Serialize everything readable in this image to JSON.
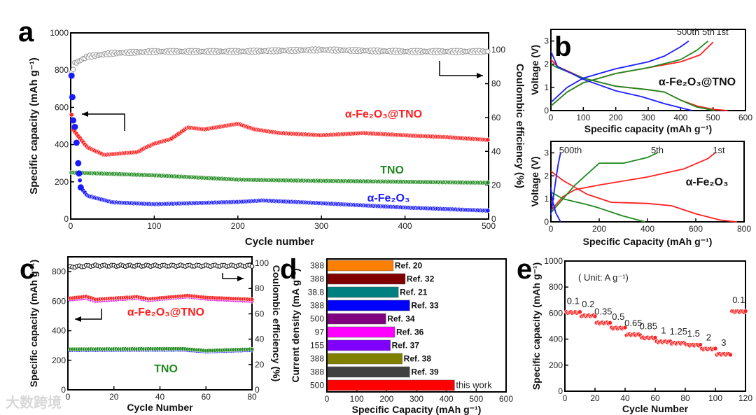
{
  "panel_labels": [
    "a",
    "b",
    "c",
    "d",
    "e"
  ],
  "watermark": "大数跨境",
  "colors": {
    "red": "#ff2020",
    "green": "#1f8a1f",
    "blue": "#1a1aff",
    "grey": "#9a9a9a",
    "black": "#111111",
    "magenta": "#e020e0"
  },
  "chart_data": [
    {
      "type": "scatter",
      "panel": "a",
      "xlabel": "Cycle number",
      "ylabel": "Specific capacity (mAh g⁻¹)",
      "y2label": "Coulombic efficiency (%)",
      "xlim": [
        0,
        500
      ],
      "ylim": [
        0,
        1000
      ],
      "y2lim": [
        0,
        110
      ],
      "xticks": [
        "0",
        "100",
        "200",
        "300",
        "400",
        "500"
      ],
      "yticks": [
        "0",
        "200",
        "400",
        "600",
        "800",
        "1000"
      ],
      "y2ticks": [
        "0",
        "20",
        "40",
        "60",
        "80",
        "100"
      ],
      "series": [
        {
          "name": "Coulombic efficiency",
          "axis": "right",
          "color": "#9a9a9a",
          "points": [
            [
              1,
              86
            ],
            [
              5,
              92
            ],
            [
              20,
              96
            ],
            [
              50,
              98
            ],
            [
              100,
              99
            ],
            [
              200,
              99
            ],
            [
              300,
              100
            ],
            [
              400,
              99
            ],
            [
              500,
              99
            ]
          ]
        },
        {
          "name": "α-Fe₂O₃@TNO",
          "axis": "left",
          "color": "#ff2020",
          "label": "α-Fe₂O₃@TNO",
          "points": [
            [
              1,
              560
            ],
            [
              3,
              480
            ],
            [
              10,
              440
            ],
            [
              20,
              385
            ],
            [
              40,
              345
            ],
            [
              80,
              360
            ],
            [
              90,
              385
            ],
            [
              100,
              405
            ],
            [
              120,
              430
            ],
            [
              140,
              492
            ],
            [
              160,
              482
            ],
            [
              200,
              512
            ],
            [
              220,
              482
            ],
            [
              250,
              462
            ],
            [
              300,
              450
            ],
            [
              350,
              462
            ],
            [
              400,
              450
            ],
            [
              450,
              440
            ],
            [
              500,
              425
            ]
          ]
        },
        {
          "name": "TNO",
          "axis": "left",
          "color": "#1f8a1f",
          "label": "TNO",
          "points": [
            [
              1,
              250
            ],
            [
              100,
              235
            ],
            [
              200,
              212
            ],
            [
              300,
              205
            ],
            [
              400,
              200
            ],
            [
              500,
              195
            ]
          ]
        },
        {
          "name": "α-Fe₂O₃",
          "axis": "left",
          "color": "#1a1aff",
          "label": "α-Fe₂O₃",
          "points": [
            [
              1,
              770
            ],
            [
              2,
              655
            ],
            [
              3,
              530
            ],
            [
              5,
              495
            ],
            [
              7,
              410
            ],
            [
              9,
              300
            ],
            [
              10,
              245
            ],
            [
              12,
              170
            ],
            [
              20,
              125
            ],
            [
              50,
              90
            ],
            [
              100,
              80
            ],
            [
              200,
              92
            ],
            [
              230,
              100
            ],
            [
              300,
              85
            ],
            [
              400,
              62
            ],
            [
              500,
              45
            ]
          ]
        }
      ]
    },
    {
      "type": "line",
      "panel": "b-top",
      "xlabel": "Specific capacity (mAh g⁻¹)",
      "ylabel": "Voltage (V)",
      "title": "α-Fe₂O₃@TNO",
      "xlim": [
        0,
        600
      ],
      "ylim": [
        0,
        3.5
      ],
      "xticks": [
        "0",
        "100",
        "200",
        "300",
        "400",
        "500",
        "600"
      ],
      "yticks": [
        "0",
        "1",
        "2",
        "3"
      ],
      "series": [
        {
          "name": "1st",
          "color": "#ff2020",
          "charge": [
            [
              0,
              0.2
            ],
            [
              50,
              0.8
            ],
            [
              100,
              1.2
            ],
            [
              200,
              1.6
            ],
            [
              300,
              1.85
            ],
            [
              400,
              2.1
            ],
            [
              460,
              2.4
            ],
            [
              500,
              2.95
            ]
          ],
          "discharge": [
            [
              0,
              2.2
            ],
            [
              20,
              1.9
            ],
            [
              100,
              1.4
            ],
            [
              200,
              1.05
            ],
            [
              300,
              0.9
            ],
            [
              350,
              0.8
            ],
            [
              400,
              0.45
            ],
            [
              450,
              0.2
            ],
            [
              500,
              0.05
            ],
            [
              545,
              0
            ]
          ]
        },
        {
          "name": "5th",
          "color": "#1f8a1f",
          "charge": [
            [
              0,
              0.2
            ],
            [
              50,
              0.8
            ],
            [
              100,
              1.2
            ],
            [
              200,
              1.6
            ],
            [
              300,
              1.85
            ],
            [
              400,
              2.2
            ],
            [
              450,
              2.6
            ],
            [
              485,
              3.0
            ]
          ],
          "discharge": [
            [
              0,
              2.0
            ],
            [
              20,
              1.85
            ],
            [
              100,
              1.4
            ],
            [
              200,
              1.05
            ],
            [
              300,
              0.9
            ],
            [
              350,
              0.8
            ],
            [
              400,
              0.45
            ],
            [
              450,
              0.15
            ],
            [
              505,
              0
            ]
          ]
        },
        {
          "name": "500th",
          "color": "#1a1aff",
          "charge": [
            [
              0,
              0.35
            ],
            [
              50,
              1.0
            ],
            [
              100,
              1.4
            ],
            [
              200,
              1.8
            ],
            [
              300,
              2.1
            ],
            [
              350,
              2.35
            ],
            [
              400,
              2.75
            ],
            [
              425,
              3.0
            ]
          ],
          "discharge": [
            [
              0,
              2.55
            ],
            [
              20,
              1.9
            ],
            [
              100,
              1.35
            ],
            [
              200,
              0.85
            ],
            [
              280,
              0.6
            ],
            [
              350,
              0.3
            ],
            [
              435,
              0
            ]
          ]
        }
      ],
      "curve_labels": [
        "500th",
        "5th",
        "1st"
      ]
    },
    {
      "type": "line",
      "panel": "b-bottom",
      "xlabel": "Specific Capacity (mAh g⁻¹)",
      "ylabel": "Voltage (V)",
      "title": "α-Fe₂O₃",
      "xlim": [
        0,
        800
      ],
      "ylim": [
        0,
        3.5
      ],
      "xticks": [
        "0",
        "200",
        "400",
        "600",
        "800"
      ],
      "yticks": [
        "0",
        "1",
        "2",
        "3"
      ],
      "series": [
        {
          "name": "1st",
          "color": "#ff2020",
          "charge": [
            [
              0,
              0.5
            ],
            [
              50,
              1.1
            ],
            [
              100,
              1.4
            ],
            [
              200,
              1.6
            ],
            [
              400,
              1.95
            ],
            [
              550,
              2.3
            ],
            [
              650,
              2.75
            ],
            [
              680,
              3.0
            ]
          ],
          "discharge": [
            [
              0,
              2.2
            ],
            [
              50,
              1.8
            ],
            [
              150,
              1.2
            ],
            [
              250,
              0.85
            ],
            [
              400,
              0.8
            ],
            [
              500,
              0.7
            ],
            [
              600,
              0.35
            ],
            [
              700,
              0.08
            ],
            [
              770,
              0
            ]
          ]
        },
        {
          "name": "5th",
          "color": "#1f8a1f",
          "charge": [
            [
              0,
              0.4
            ],
            [
              50,
              1.0
            ],
            [
              100,
              1.6
            ],
            [
              200,
              2.55
            ],
            [
              300,
              2.55
            ],
            [
              400,
              2.8
            ],
            [
              440,
              3.0
            ]
          ],
          "discharge": [
            [
              0,
              1.3
            ],
            [
              50,
              1.0
            ],
            [
              150,
              0.75
            ],
            [
              200,
              0.6
            ],
            [
              300,
              0.25
            ],
            [
              390,
              0
            ]
          ]
        },
        {
          "name": "500th",
          "color": "#1a1aff",
          "charge": [
            [
              0,
              0.3
            ],
            [
              20,
              1.8
            ],
            [
              30,
              2.5
            ],
            [
              40,
              3.0
            ]
          ],
          "discharge": [
            [
              0,
              1.5
            ],
            [
              5,
              1.0
            ],
            [
              20,
              0.4
            ],
            [
              40,
              0
            ]
          ]
        }
      ],
      "curve_labels": [
        "500th",
        "5th",
        "1st"
      ]
    },
    {
      "type": "scatter",
      "panel": "c",
      "xlabel": "Cycle Number",
      "ylabel": "Specific capacity (mAh g⁻¹)",
      "y2label": "Coulombic efficiency (%)",
      "xlim": [
        0,
        80
      ],
      "ylim": [
        0,
        900
      ],
      "y2lim": [
        0,
        105
      ],
      "xticks": [
        "0",
        "20",
        "40",
        "60",
        "80"
      ],
      "yticks": [
        "0",
        "200",
        "400",
        "600",
        "800"
      ],
      "y2ticks": [
        "0",
        "20",
        "40",
        "60",
        "80",
        "100"
      ],
      "series": [
        {
          "name": "Coulombic efficiency",
          "axis": "right",
          "color": "#111111",
          "points": [
            [
              1,
              97
            ],
            [
              10,
              98
            ],
            [
              40,
              98
            ],
            [
              80,
              98
            ]
          ]
        },
        {
          "name": "α-Fe₂O₃@TNO discharge",
          "axis": "left",
          "color": "#e020e0",
          "points": [
            [
              1,
              610
            ],
            [
              8,
              620
            ],
            [
              12,
              600
            ],
            [
              30,
              620
            ],
            [
              35,
              605
            ],
            [
              52,
              630
            ],
            [
              60,
              615
            ],
            [
              80,
              600
            ]
          ]
        },
        {
          "name": "α-Fe₂O₃@TNO",
          "axis": "left",
          "color": "#ff2020",
          "label": "α-Fe₂O₃@TNO",
          "points": [
            [
              1,
              620
            ],
            [
              8,
              632
            ],
            [
              12,
              612
            ],
            [
              30,
              630
            ],
            [
              35,
              615
            ],
            [
              52,
              638
            ],
            [
              60,
              625
            ],
            [
              80,
              612
            ]
          ]
        },
        {
          "name": "TNO discharge",
          "axis": "left",
          "color": "#1a1aff",
          "points": [
            [
              1,
              268
            ],
            [
              50,
              270
            ],
            [
              60,
              258
            ],
            [
              80,
              268
            ]
          ]
        },
        {
          "name": "TNO",
          "axis": "left",
          "color": "#1f8a1f",
          "label": "TNO",
          "points": [
            [
              1,
              275
            ],
            [
              50,
              278
            ],
            [
              60,
              265
            ],
            [
              80,
              275
            ]
          ]
        }
      ]
    },
    {
      "type": "bar",
      "panel": "d",
      "orientation": "horizontal",
      "xlabel": "Specific Capacity (mAh g⁻¹)",
      "ylabel": "Current density (mA g⁻¹)",
      "xlim": [
        0,
        600
      ],
      "xticks": [
        "0",
        "100",
        "200",
        "300",
        "400",
        "500",
        "600"
      ],
      "categories": [
        "Ref. 20",
        "Ref. 32",
        "Ref. 21",
        "Ref. 33",
        "Ref. 34",
        "Ref. 36",
        "Ref. 37",
        "Ref. 38",
        "Ref. 39",
        "this work"
      ],
      "current_density": [
        "388",
        "388",
        "38.8",
        "388",
        "500",
        "97",
        "155",
        "388",
        "388",
        "500"
      ],
      "values": [
        220,
        260,
        237,
        275,
        195,
        225,
        210,
        250,
        275,
        425
      ],
      "bar_colors": [
        "#ff8000",
        "#800000",
        "#008080",
        "#0000ff",
        "#800080",
        "#ff00ff",
        "#8000ff",
        "#808000",
        "#404040",
        "#ff0000"
      ]
    },
    {
      "type": "scatter",
      "panel": "e",
      "xlabel": "Cycle Number",
      "ylabel": "Specific capacity (mAh g⁻¹)",
      "note": "( Unit: A g⁻¹)",
      "xlim": [
        0,
        120
      ],
      "ylim": [
        0,
        1000
      ],
      "xticks": [
        "0",
        "20",
        "40",
        "60",
        "80",
        "100",
        "120"
      ],
      "yticks": [
        "0",
        "200",
        "400",
        "600",
        "800",
        "1000"
      ],
      "steps": [
        {
          "rate": "0.1",
          "from": 1,
          "to": 10,
          "value": 605
        },
        {
          "rate": "0.2",
          "from": 11,
          "to": 20,
          "value": 580
        },
        {
          "rate": "0.35",
          "from": 21,
          "to": 30,
          "value": 525
        },
        {
          "rate": "0.5",
          "from": 31,
          "to": 40,
          "value": 485
        },
        {
          "rate": "0.65",
          "from": 41,
          "to": 50,
          "value": 435
        },
        {
          "rate": "0.85",
          "from": 51,
          "to": 60,
          "value": 410
        },
        {
          "rate": "1",
          "from": 61,
          "to": 70,
          "value": 380
        },
        {
          "rate": "1.25",
          "from": 71,
          "to": 80,
          "value": 370
        },
        {
          "rate": "1.5",
          "from": 81,
          "to": 90,
          "value": 355
        },
        {
          "rate": "2",
          "from": 91,
          "to": 100,
          "value": 325
        },
        {
          "rate": "3",
          "from": 101,
          "to": 110,
          "value": 285
        },
        {
          "rate": "0.1",
          "from": 111,
          "to": 120,
          "value": 612
        }
      ]
    }
  ]
}
